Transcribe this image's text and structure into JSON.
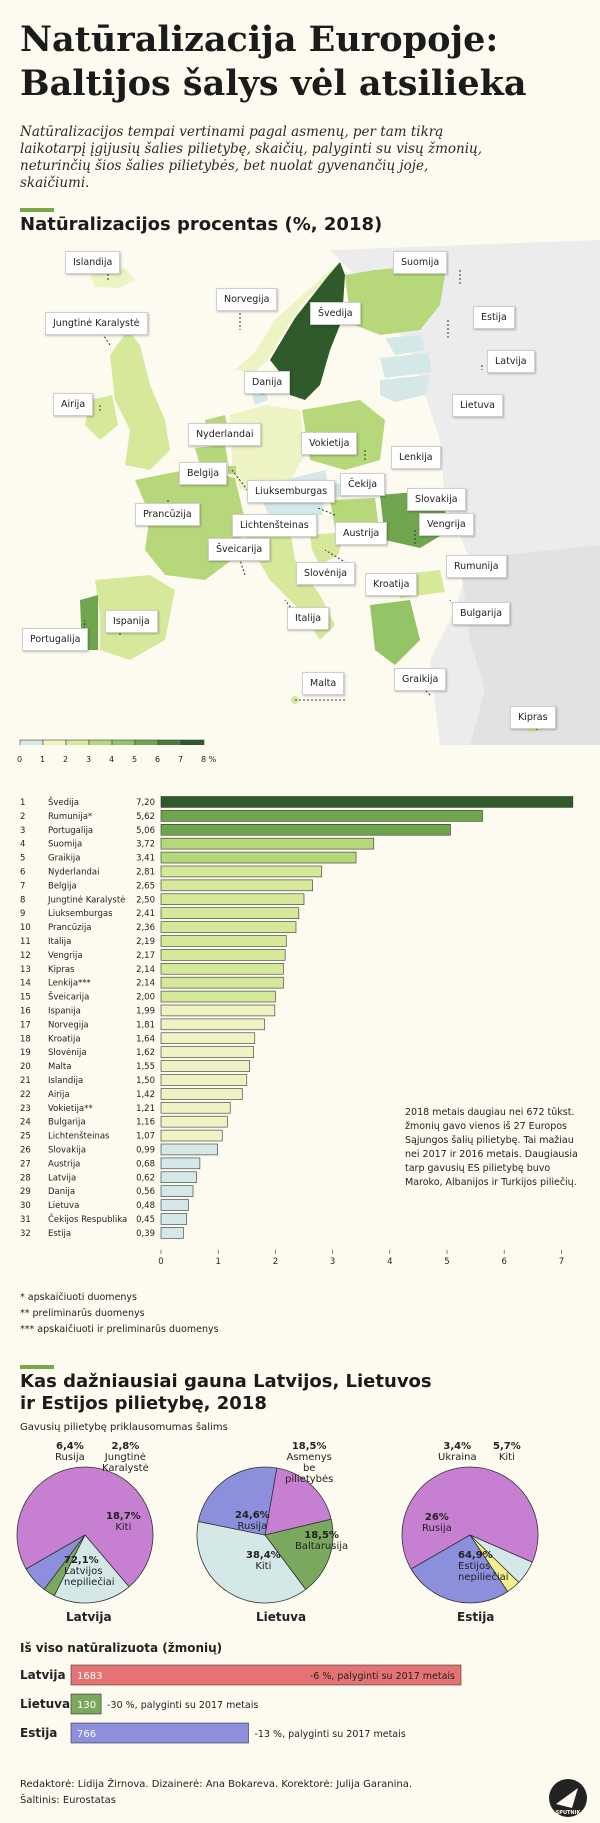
{
  "header": {
    "title_line1": "Natūralizacija Europoje:",
    "title_line2": "Baltijos šalys vėl atsilieka",
    "intro": "Natūralizacijos tempai vertinami pagal asmenų, per tam tikrą laikotarpį įgijusių šalies pilietybę, skaičių, palyginti su visų žmonių, neturinčių šios šalies pilietybės, bet nuolat gyvenančių joje, skaičiumi."
  },
  "section1": {
    "heading": "Natūralizacijos procentas (%, 2018)"
  },
  "map": {
    "colors": [
      "#d5e8e8",
      "#eef3c3",
      "#d6e89a",
      "#b6d87a",
      "#93c465",
      "#6fa64d",
      "#4a7c3a",
      "#2f5b2a"
    ],
    "labels": [
      "Islandija",
      "Norvegija",
      "Švedija",
      "Suomija",
      "Estija",
      "Latvija",
      "Jungtinė Karalystė",
      "Airija",
      "Danija",
      "Lietuva",
      "Nyderlandai",
      "Vokietija",
      "Lenkija",
      "Belgija",
      "Čekija",
      "Slovakija",
      "Prancūzija",
      "Liuksemburgas",
      "Austrija",
      "Vengrija",
      "Lichtenšteinas",
      "Rumunija",
      "Šveicarija",
      "Slovėnija",
      "Kroatija",
      "Ispanija",
      "Italija",
      "Bulgarija",
      "Portugalija",
      "Malta",
      "Graikija",
      "Kipras"
    ]
  },
  "legend": {
    "ticks": [
      "0",
      "1",
      "2",
      "3",
      "4",
      "5",
      "6",
      "7",
      "8 %"
    ]
  },
  "chart_data": [
    {
      "type": "bar",
      "orientation": "horizontal",
      "title": "Natūralizacijos procentas (%, 2018)",
      "ranks": [
        "1",
        "2",
        "3",
        "4",
        "5",
        "6",
        "7",
        "8",
        "9",
        "10",
        "11",
        "12",
        "13",
        "14",
        "15",
        "16",
        "17",
        "18",
        "19",
        "20",
        "21",
        "22",
        "23",
        "24",
        "25",
        "26",
        "27",
        "28",
        "29",
        "30",
        "31",
        "32"
      ],
      "categories": [
        "Švedija",
        "Rumunija*",
        "Portugalija",
        "Suomija",
        "Graikija",
        "Nyderlandai",
        "Belgija",
        "Jungtinė Karalystė",
        "Liuksemburgas",
        "Prancūzija",
        "Italija",
        "Vengrija",
        "Kipras",
        "Lenkija***",
        "Šveicarija",
        "Ispanija",
        "Norvegija",
        "Kroatija",
        "Slovėnija",
        "Malta",
        "Islandija",
        "Airija",
        "Vokietija**",
        "Bulgarija",
        "Lichtenšteinas",
        "Slovakija",
        "Austrija",
        "Latvija",
        "Danija",
        "Lietuva",
        "Čekijos Respublika",
        "Estija"
      ],
      "values": [
        7.2,
        5.62,
        5.06,
        3.72,
        3.41,
        2.81,
        2.65,
        2.5,
        2.41,
        2.36,
        2.19,
        2.17,
        2.14,
        2.14,
        2.0,
        1.99,
        1.81,
        1.64,
        1.62,
        1.55,
        1.5,
        1.42,
        1.21,
        1.16,
        1.07,
        0.99,
        0.68,
        0.62,
        0.56,
        0.48,
        0.45,
        0.39
      ],
      "value_labels": [
        "7,20",
        "5,62",
        "5,06",
        "3,72",
        "3,41",
        "2,81",
        "2,65",
        "2,50",
        "2,41",
        "2,36",
        "2,19",
        "2,17",
        "2,14",
        "2,14",
        "2,00",
        "1,99",
        "1,81",
        "1,64",
        "1,62",
        "1,55",
        "1,50",
        "1,42",
        "1,21",
        "1,16",
        "1,07",
        "0,99",
        "0,68",
        "0,62",
        "0,56",
        "0,48",
        "0,45",
        "0,39"
      ],
      "xlim": [
        0,
        7.2
      ],
      "xticks": [
        "0",
        "1",
        "2",
        "3",
        "4",
        "5",
        "6",
        "7"
      ]
    },
    {
      "type": "pie",
      "title": "Latvija",
      "categories": [
        "Latvijos nepiliečiai",
        "Rusija",
        "Jungtinė Karalystė",
        "Kiti"
      ],
      "values": [
        72.1,
        6.4,
        2.8,
        18.7
      ],
      "value_labels": [
        "72,1%",
        "6,4%",
        "2,8%",
        "18,7%"
      ]
    },
    {
      "type": "pie",
      "title": "Lietuva",
      "categories": [
        "Asmenys be pilietybės",
        "Baltarusija",
        "Kiti",
        "Rusija"
      ],
      "values": [
        18.5,
        18.5,
        38.4,
        24.6
      ],
      "value_labels": [
        "18,5%",
        "18,5%",
        "38,4%",
        "24,6%"
      ]
    },
    {
      "type": "pie",
      "title": "Estija",
      "categories": [
        "Estijos nepiliečiai",
        "Rusija",
        "Ukraina",
        "Kiti"
      ],
      "values": [
        64.9,
        26.0,
        3.4,
        5.7
      ],
      "value_labels": [
        "64,9%",
        "26%",
        "3,4%",
        "5,7%"
      ]
    },
    {
      "type": "bar",
      "orientation": "horizontal",
      "title": "Iš viso natūralizuota (žmonių)",
      "categories": [
        "Latvija",
        "Lietuva",
        "Estija"
      ],
      "values": [
        1683,
        130,
        766
      ],
      "value_labels": [
        "1683",
        "130",
        "766"
      ],
      "annotations": [
        "-6 %, palyginti su 2017 metais",
        "-30 %, palyginti su 2017 metais",
        "-13 %, palyginti su 2017 metais"
      ],
      "colors": [
        "#e57373",
        "#79a85e",
        "#8b8fdc"
      ]
    }
  ],
  "footnotes": [
    "* apskaičiuoti duomenys",
    "** preliminarūs duomenys",
    "*** apskaičiuoti ir preliminarūs duomenys"
  ],
  "note": "2018 metais daugiau nei 672 tūkst. žmonių gavo vienos iš 27 Europos Sąjungos šalių pilietybę. Tai mažiau nei 2017 ir 2016 metais. Daugiausia tarp gavusių ES pilietybę buvo Maroko, Albanijos ir Turkijos piliečių.",
  "section2": {
    "heading_line1": "Kas dažniausiai gauna Latvijos, Lietuvos",
    "heading_line2": "ir Estijos pilietybę, 2018",
    "subheading": "Gavusių pilietybę priklausomumas šalims"
  },
  "pies": {
    "latvija": {
      "name": "Latvija",
      "big": "72,1%",
      "big_label1": "Latvijos",
      "big_label2": "nepiliečiai",
      "p2": "6,4%",
      "p2l": "Rusija",
      "p3": "2,8%",
      "p3l": "Jungtinė Karalystė",
      "p4": "18,7%",
      "p4l": "Kiti"
    },
    "lietuva": {
      "name": "Lietuva",
      "p1": "18,5%",
      "p1l": "Asmenys be pilietybės",
      "p2": "18,5%",
      "p2l": "Baltarusija",
      "p3": "38,4%",
      "p3l": "Kiti",
      "p4": "24,6%",
      "p4l": "Rusija"
    },
    "estija": {
      "name": "Estija",
      "big": "64,9%",
      "big_label1": "Estijos",
      "big_label2": "nepiliečiai",
      "p2": "26%",
      "p2l": "Rusija",
      "p3": "3,4%",
      "p3l": "Ukraina",
      "p4": "5,7%",
      "p4l": "Kiti"
    }
  },
  "totals": {
    "heading": "Iš viso natūralizuota (žmonių)"
  },
  "credits": {
    "line1": "Redaktorė: Lidija Žirnova. Dizainerė: Ana Bokareva. Korektorė: Julija Garanina.",
    "line2": "Šaltinis: Eurostatas"
  },
  "brand": {
    "logo_text": "SPUTNIK"
  }
}
